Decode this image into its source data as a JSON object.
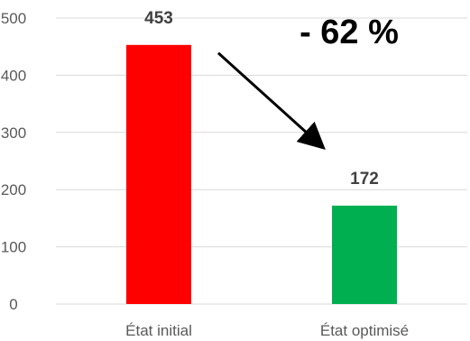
{
  "chart_data": {
    "type": "bar",
    "title": "",
    "xlabel": "",
    "ylabel": "",
    "categories": [
      "État initial",
      "État optimisé"
    ],
    "values": [
      453,
      172
    ],
    "data_labels": [
      "453",
      "172"
    ],
    "bar_colors": [
      "#ff0000",
      "#00b050"
    ],
    "ylim": [
      0,
      500
    ],
    "yticks": [
      0,
      100,
      200,
      300,
      400,
      500
    ],
    "grid": true,
    "legend": "none",
    "annotation": {
      "text": "- 62 %",
      "arrow": {
        "from_category": 0,
        "to_category": 1
      }
    }
  }
}
